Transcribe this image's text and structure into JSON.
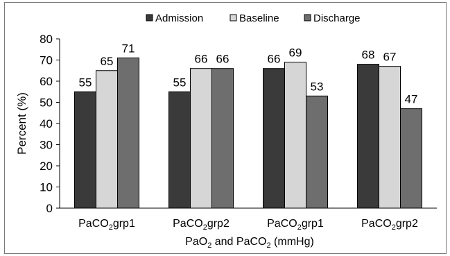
{
  "chart_data": {
    "type": "bar",
    "categories": [
      "PaCO2grp1",
      "PaCO2grp2",
      "PaCO2grp1",
      "PaCO2grp2"
    ],
    "category_labels": [
      {
        "main": "PaCO",
        "sub": "2",
        "rest": "grp1"
      },
      {
        "main": "PaCO",
        "sub": "2",
        "rest": "grp2"
      },
      {
        "main": "PaCO",
        "sub": "2",
        "rest": "grp1"
      },
      {
        "main": "PaCO",
        "sub": "2",
        "rest": "grp2"
      }
    ],
    "series": [
      {
        "name": "Admission",
        "color": "#3a3a3a",
        "values": [
          55,
          55,
          66,
          68
        ]
      },
      {
        "name": "Baseline",
        "color": "#d6d6d6",
        "values": [
          65,
          66,
          69,
          67
        ]
      },
      {
        "name": "Discharge",
        "color": "#6e6e6e",
        "values": [
          71,
          66,
          53,
          47
        ]
      }
    ],
    "ylabel": "Percent (%)",
    "xlabel_parts": [
      "PaO",
      "2",
      " and PaCO",
      "2",
      " (mmHg)"
    ],
    "ylim": [
      0,
      80
    ],
    "yticks": [
      0,
      10,
      20,
      30,
      40,
      50,
      60,
      70,
      80
    ],
    "legend_position": "top-center",
    "grid": false
  }
}
